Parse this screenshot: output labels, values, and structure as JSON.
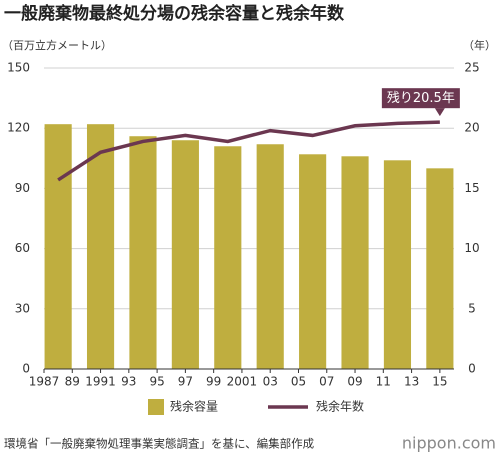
{
  "chart_data": {
    "type": "bar",
    "title": "一般廃棄物最終処分場の残余容量と残余年数",
    "y_label": "（百万立方メートル）",
    "y2_label": "（年）",
    "x": [
      1988,
      1991,
      1994,
      1997,
      2000,
      2003,
      2006,
      2009,
      2012,
      2015
    ],
    "series": [
      {
        "name": "残余容量",
        "type": "bar",
        "color": "#bfae3f",
        "axis": "y",
        "values": [
          122,
          122,
          116,
          114,
          111,
          112,
          107,
          106,
          104,
          100
        ]
      },
      {
        "name": "残余年数",
        "type": "line",
        "color": "#6b3750",
        "axis": "y2",
        "values": [
          15.7,
          18.0,
          18.9,
          19.4,
          18.9,
          19.8,
          19.4,
          20.2,
          20.4,
          20.5
        ]
      }
    ],
    "xlim": [
      1987,
      2016
    ],
    "xticks": [
      1987,
      {
        "value": 1989,
        "label": "89"
      },
      1991,
      {
        "value": 1993,
        "label": "93"
      },
      {
        "value": 1995,
        "label": "95"
      },
      {
        "value": 1997,
        "label": "97"
      },
      {
        "value": 1999,
        "label": "99"
      },
      2001,
      {
        "value": 2003,
        "label": "03"
      },
      {
        "value": 2005,
        "label": "05"
      },
      {
        "value": 2007,
        "label": "07"
      },
      {
        "value": 2009,
        "label": "09"
      },
      {
        "value": 2011,
        "label": "11"
      },
      {
        "value": 2013,
        "label": "13"
      },
      {
        "value": 2015,
        "label": "15"
      }
    ],
    "ylim": [
      0,
      150
    ],
    "yticks": [
      0,
      30,
      60,
      90,
      120,
      150
    ],
    "y2lim": [
      0,
      25
    ],
    "y2ticks": [
      0,
      5,
      10,
      15,
      20,
      25
    ],
    "grid": true,
    "annotation": "残り20.5年",
    "source": "環境省「一般廃棄物処理事業実態調査」を基に、編集部作成",
    "logo": "nippon.com"
  }
}
